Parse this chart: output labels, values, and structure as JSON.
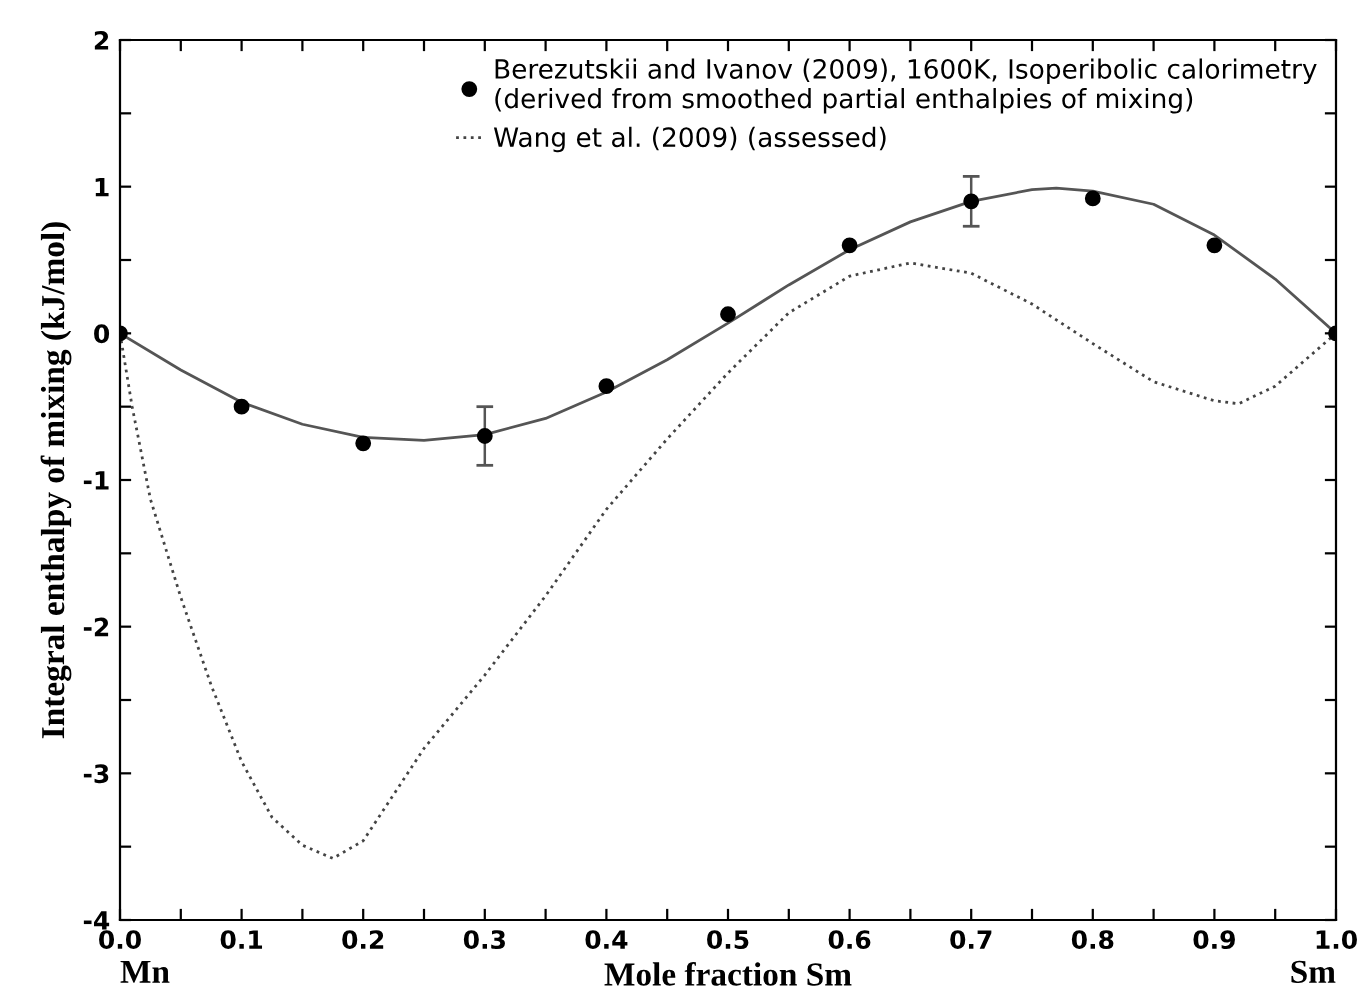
{
  "chart_data": {
    "type": "line",
    "xlabel": "Mole fraction Sm",
    "ylabel": "Integral enthalpy of mixing (kJ/mol)",
    "xlim": [
      0,
      1
    ],
    "ylim": [
      -4,
      2
    ],
    "xticks": [
      {
        "value": 0,
        "label": "0.0"
      },
      {
        "value": 0.05,
        "label": null
      },
      0.1,
      {
        "value": 0.15,
        "label": null
      },
      0.2,
      {
        "value": 0.25,
        "label": null
      },
      0.3,
      {
        "value": 0.35,
        "label": null
      },
      0.4,
      {
        "value": 0.45,
        "label": null
      },
      0.5,
      {
        "value": 0.55,
        "label": null
      },
      0.6,
      {
        "value": 0.65,
        "label": null
      },
      0.7,
      {
        "value": 0.75,
        "label": null
      },
      0.8,
      {
        "value": 0.85,
        "label": null
      },
      0.9,
      {
        "value": 0.95,
        "label": null
      },
      {
        "value": 1,
        "label": "1.0"
      }
    ],
    "yticks": [
      -4,
      {
        "value": -3.5,
        "label": null
      },
      -3,
      {
        "value": -2.5,
        "label": null
      },
      -2,
      {
        "value": -1.5,
        "label": null
      },
      -1,
      {
        "value": -0.5,
        "label": null
      },
      0,
      {
        "value": 0.5,
        "label": null
      },
      1,
      {
        "value": 1.5,
        "label": null
      },
      2
    ],
    "grid": false,
    "legend": "top right",
    "annotations": [
      "Mn",
      "Sm"
    ],
    "series": [
      {
        "name": "Berezutskii and Ivanov (2009), 1600K, Isoperibolic calorimetry\n(derived from smoothed partial enthalpies of mixing)",
        "type": "scatter",
        "marker": "circle",
        "color": "#000000",
        "x": [
          0,
          0.1,
          0.2,
          0.3,
          0.4,
          0.5,
          0.6,
          0.7,
          0.8,
          0.9,
          1.0
        ],
        "values": [
          0,
          -0.5,
          -0.75,
          -0.7,
          -0.36,
          0.13,
          0.6,
          0.9,
          0.92,
          0.6,
          0
        ],
        "errors": [
          null,
          null,
          null,
          0.2,
          null,
          null,
          null,
          0.17,
          null,
          null,
          null
        ]
      },
      {
        "line_style": "solid",
        "color": "#555555",
        "x": [
          0,
          0.05,
          0.1,
          0.15,
          0.2,
          0.25,
          0.3,
          0.35,
          0.4,
          0.45,
          0.5,
          0.55,
          0.6,
          0.65,
          0.7,
          0.75,
          0.77,
          0.8,
          0.85,
          0.9,
          0.95,
          1.0
        ],
        "values": [
          0,
          -0.25,
          -0.47,
          -0.62,
          -0.71,
          -0.73,
          -0.69,
          -0.58,
          -0.4,
          -0.18,
          0.07,
          0.33,
          0.57,
          0.76,
          0.9,
          0.98,
          0.99,
          0.97,
          0.88,
          0.67,
          0.37,
          0
        ]
      },
      {
        "name": "Wang et al. (2009) (assessed)",
        "type": "line",
        "line_style": "dotted",
        "color": "#444444",
        "x": [
          0,
          0.01,
          0.025,
          0.05,
          0.075,
          0.1,
          0.125,
          0.15,
          0.175,
          0.2,
          0.25,
          0.3,
          0.35,
          0.4,
          0.45,
          0.5,
          0.55,
          0.6,
          0.65,
          0.7,
          0.75,
          0.8,
          0.85,
          0.9,
          0.92,
          0.95,
          1.0
        ],
        "values": [
          0,
          -0.5,
          -1.13,
          -1.8,
          -2.4,
          -2.92,
          -3.3,
          -3.49,
          -3.58,
          -3.46,
          -2.83,
          -2.33,
          -1.79,
          -1.2,
          -0.72,
          -0.27,
          0.14,
          0.39,
          0.48,
          0.41,
          0.2,
          -0.07,
          -0.33,
          -0.46,
          -0.48,
          -0.36,
          0
        ]
      }
    ]
  }
}
